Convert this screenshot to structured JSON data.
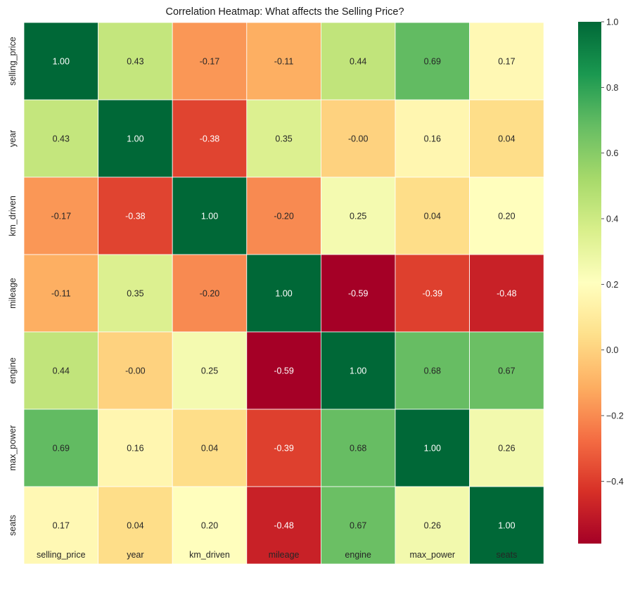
{
  "chart_data": {
    "type": "heatmap",
    "title": "Correlation Heatmap: What affects the Selling Price?",
    "x_labels": [
      "selling_price",
      "year",
      "km_driven",
      "mileage",
      "engine",
      "max_power",
      "seats"
    ],
    "y_labels": [
      "selling_price",
      "year",
      "km_driven",
      "mileage",
      "engine",
      "max_power",
      "seats"
    ],
    "values": [
      [
        1.0,
        0.43,
        -0.17,
        -0.11,
        0.44,
        0.69,
        0.17
      ],
      [
        0.43,
        1.0,
        -0.38,
        0.35,
        -0.0,
        0.16,
        0.04
      ],
      [
        -0.17,
        -0.38,
        1.0,
        -0.2,
        0.25,
        0.04,
        0.2
      ],
      [
        -0.11,
        0.35,
        -0.2,
        1.0,
        -0.59,
        -0.39,
        -0.48
      ],
      [
        0.44,
        -0.0,
        0.25,
        -0.59,
        1.0,
        0.68,
        0.67
      ],
      [
        0.69,
        0.16,
        0.04,
        -0.39,
        0.68,
        1.0,
        0.26
      ],
      [
        0.17,
        0.04,
        0.2,
        -0.48,
        0.67,
        0.26,
        1.0
      ]
    ],
    "value_labels": [
      [
        "1.00",
        "0.43",
        "-0.17",
        "-0.11",
        "0.44",
        "0.69",
        "0.17"
      ],
      [
        "0.43",
        "1.00",
        "-0.38",
        "0.35",
        "-0.00",
        "0.16",
        "0.04"
      ],
      [
        "-0.17",
        "-0.38",
        "1.00",
        "-0.20",
        "0.25",
        "0.04",
        "0.20"
      ],
      [
        "-0.11",
        "0.35",
        "-0.20",
        "1.00",
        "-0.59",
        "-0.39",
        "-0.48"
      ],
      [
        "0.44",
        "-0.00",
        "0.25",
        "-0.59",
        "1.00",
        "0.68",
        "0.67"
      ],
      [
        "0.69",
        "0.16",
        "0.04",
        "-0.39",
        "0.68",
        "1.00",
        "0.26"
      ],
      [
        "0.17",
        "0.04",
        "0.20",
        "-0.48",
        "0.67",
        "0.26",
        "1.00"
      ]
    ],
    "colormap": "RdYlGn",
    "vmin": -0.59,
    "vmax": 1.0,
    "colorbar_ticks": [
      1.0,
      0.8,
      0.6,
      0.4,
      0.2,
      0.0,
      -0.2,
      -0.4
    ],
    "colorbar_tick_labels": [
      "1.0",
      "0.8",
      "0.6",
      "0.4",
      "0.2",
      "0.0",
      "−0.2",
      "−0.4"
    ],
    "grid": false,
    "legend": "colorbar-right"
  }
}
